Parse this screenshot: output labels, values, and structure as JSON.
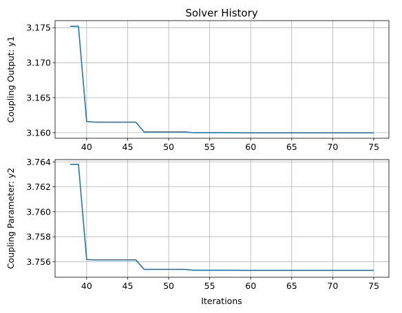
{
  "chart_data": [
    {
      "type": "line",
      "title": "Solver History",
      "xlabel": "",
      "ylabel": "Coupling Output: y1",
      "xlim": [
        36.15,
        76.85
      ],
      "ylim": [
        3.1592,
        3.176
      ],
      "xticks": [
        40,
        45,
        50,
        55,
        60,
        65,
        70,
        75
      ],
      "yticks": [
        3.16,
        3.165,
        3.17,
        3.175
      ],
      "ytick_labels": [
        "3.160",
        "3.165",
        "3.170",
        "3.175"
      ],
      "grid": true,
      "color": "#1f77b4",
      "series": [
        {
          "x": [
            38,
            39,
            40,
            41,
            42,
            43,
            44,
            45,
            46,
            47,
            48,
            49,
            50,
            51,
            52,
            53,
            54,
            55,
            56,
            57,
            58,
            59,
            60,
            61,
            62,
            63,
            64,
            65,
            66,
            67,
            68,
            69,
            70,
            71,
            72,
            73,
            74,
            75
          ],
          "values": [
            3.1752,
            3.1752,
            3.1616,
            3.1615,
            3.1615,
            3.1615,
            3.1615,
            3.1615,
            3.1615,
            3.1601,
            3.1601,
            3.1601,
            3.1601,
            3.1601,
            3.1601,
            3.16,
            3.16,
            3.16,
            3.16,
            3.16,
            3.16,
            3.15998,
            3.15998,
            3.15998,
            3.15998,
            3.15998,
            3.15998,
            3.15998,
            3.15998,
            3.15998,
            3.15998,
            3.15998,
            3.15998,
            3.15998,
            3.15998,
            3.15998,
            3.15998,
            3.15998
          ]
        }
      ]
    },
    {
      "type": "line",
      "title": "",
      "xlabel": "Iterations",
      "ylabel": "Coupling Parameter: y2",
      "xlim": [
        36.15,
        76.85
      ],
      "ylim": [
        3.75475,
        3.76418
      ],
      "xticks": [
        40,
        45,
        50,
        55,
        60,
        65,
        70,
        75
      ],
      "yticks": [
        3.756,
        3.758,
        3.76,
        3.762,
        3.764
      ],
      "ytick_labels": [
        "3.756",
        "3.758",
        "3.760",
        "3.762",
        "3.764"
      ],
      "grid": true,
      "color": "#1f77b4",
      "series": [
        {
          "x": [
            38,
            39,
            40,
            41,
            42,
            43,
            44,
            45,
            46,
            47,
            48,
            49,
            50,
            51,
            52,
            53,
            54,
            55,
            56,
            57,
            58,
            59,
            60,
            61,
            62,
            63,
            64,
            65,
            66,
            67,
            68,
            69,
            70,
            71,
            72,
            73,
            74,
            75
          ],
          "values": [
            3.7638,
            3.7638,
            3.75617,
            3.75614,
            3.75614,
            3.75614,
            3.75614,
            3.75614,
            3.75614,
            3.75538,
            3.75538,
            3.75538,
            3.75538,
            3.75538,
            3.75538,
            3.75531,
            3.75531,
            3.75531,
            3.75531,
            3.75531,
            3.75531,
            3.7553,
            3.7553,
            3.7553,
            3.7553,
            3.7553,
            3.7553,
            3.7553,
            3.7553,
            3.7553,
            3.7553,
            3.7553,
            3.7553,
            3.7553,
            3.7553,
            3.7553,
            3.7553,
            3.7553
          ]
        }
      ]
    }
  ]
}
